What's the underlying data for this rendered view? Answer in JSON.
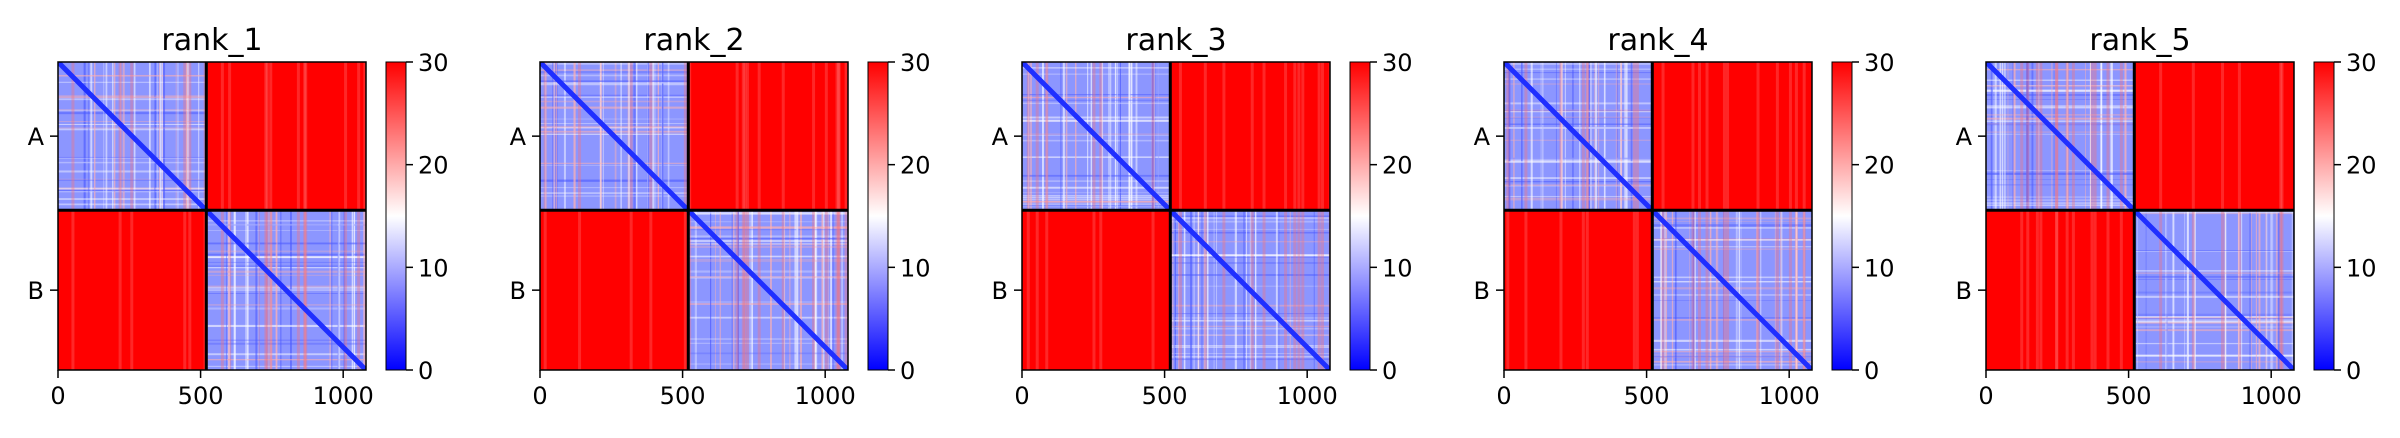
{
  "chart_data": [
    {
      "type": "heatmap",
      "title": "rank_1",
      "x_ticks": [
        0,
        500,
        1000
      ],
      "x_tick_labels": [
        "0",
        "500",
        "1000"
      ],
      "xlim": [
        0,
        1080
      ],
      "y_categories": [
        "A",
        "B"
      ],
      "chain_split": 520,
      "matrix_size": 1080,
      "colorbar": {
        "range": [
          0,
          30
        ],
        "ticks": [
          0,
          10,
          20,
          30
        ],
        "tick_labels": [
          "0",
          "10",
          "20",
          "30"
        ],
        "colors": {
          "low": "#0000ff",
          "mid": "#ffffff",
          "high": "#ff0000"
        }
      },
      "blocks": {
        "A-A": "low",
        "A-B": "high",
        "B-A": "high",
        "B-B": "low"
      }
    },
    {
      "type": "heatmap",
      "title": "rank_2",
      "x_ticks": [
        0,
        500,
        1000
      ],
      "x_tick_labels": [
        "0",
        "500",
        "1000"
      ],
      "xlim": [
        0,
        1080
      ],
      "y_categories": [
        "A",
        "B"
      ],
      "chain_split": 520,
      "matrix_size": 1080,
      "colorbar": {
        "range": [
          0,
          30
        ],
        "ticks": [
          0,
          10,
          20,
          30
        ],
        "tick_labels": [
          "0",
          "10",
          "20",
          "30"
        ],
        "colors": {
          "low": "#0000ff",
          "mid": "#ffffff",
          "high": "#ff0000"
        }
      },
      "blocks": {
        "A-A": "low",
        "A-B": "high",
        "B-A": "high",
        "B-B": "low"
      }
    },
    {
      "type": "heatmap",
      "title": "rank_3",
      "x_ticks": [
        0,
        500,
        1000
      ],
      "x_tick_labels": [
        "0",
        "500",
        "1000"
      ],
      "xlim": [
        0,
        1080
      ],
      "y_categories": [
        "A",
        "B"
      ],
      "chain_split": 520,
      "matrix_size": 1080,
      "colorbar": {
        "range": [
          0,
          30
        ],
        "ticks": [
          0,
          10,
          20,
          30
        ],
        "tick_labels": [
          "0",
          "10",
          "20",
          "30"
        ],
        "colors": {
          "low": "#0000ff",
          "mid": "#ffffff",
          "high": "#ff0000"
        }
      },
      "blocks": {
        "A-A": "low",
        "A-B": "high",
        "B-A": "high",
        "B-B": "low"
      }
    },
    {
      "type": "heatmap",
      "title": "rank_4",
      "x_ticks": [
        0,
        500,
        1000
      ],
      "x_tick_labels": [
        "0",
        "500",
        "1000"
      ],
      "xlim": [
        0,
        1080
      ],
      "y_categories": [
        "A",
        "B"
      ],
      "chain_split": 520,
      "matrix_size": 1080,
      "colorbar": {
        "range": [
          0,
          30
        ],
        "ticks": [
          0,
          10,
          20,
          30
        ],
        "tick_labels": [
          "0",
          "10",
          "20",
          "30"
        ],
        "colors": {
          "low": "#0000ff",
          "mid": "#ffffff",
          "high": "#ff0000"
        }
      },
      "blocks": {
        "A-A": "low",
        "A-B": "high",
        "B-A": "high",
        "B-B": "low"
      }
    },
    {
      "type": "heatmap",
      "title": "rank_5",
      "x_ticks": [
        0,
        500,
        1000
      ],
      "x_tick_labels": [
        "0",
        "500",
        "1000"
      ],
      "xlim": [
        0,
        1080
      ],
      "y_categories": [
        "A",
        "B"
      ],
      "chain_split": 520,
      "matrix_size": 1080,
      "colorbar": {
        "range": [
          0,
          30
        ],
        "ticks": [
          0,
          10,
          20,
          30
        ],
        "tick_labels": [
          "0",
          "10",
          "20",
          "30"
        ],
        "colors": {
          "low": "#0000ff",
          "mid": "#ffffff",
          "high": "#ff0000"
        }
      },
      "blocks": {
        "A-A": "low",
        "A-B": "high",
        "B-A": "high",
        "B-B": "low"
      }
    }
  ]
}
